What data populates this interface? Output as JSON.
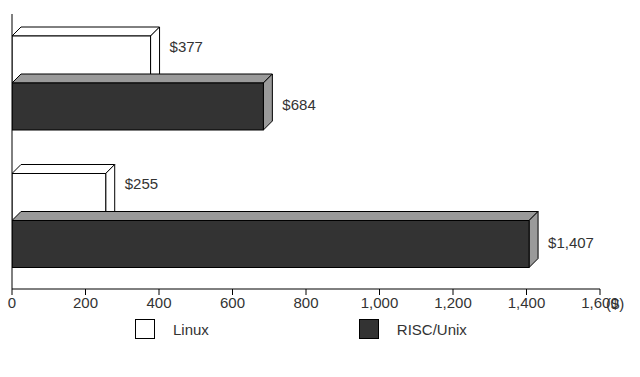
{
  "chart_data": {
    "type": "bar",
    "orientation": "horizontal",
    "categories": [
      null,
      null
    ],
    "x_label": "($)",
    "series": [
      {
        "name": "Linux",
        "color": "#ffffff",
        "values": [
          377,
          255
        ],
        "value_labels": [
          "$377",
          "$255"
        ]
      },
      {
        "name": "RISC/Unix",
        "color": "#333333",
        "values": [
          684,
          1407
        ],
        "value_labels": [
          "$684",
          "$1,407"
        ]
      }
    ],
    "xlim": [
      0,
      1600
    ],
    "xticks": [
      0,
      200,
      400,
      600,
      800,
      {
        "value": 1000,
        "label": "1,000"
      },
      {
        "value": 1200,
        "label": "1,200"
      },
      {
        "value": 1400,
        "label": "1,400"
      },
      {
        "value": 1600,
        "label": "1,600"
      }
    ],
    "data_labels": true,
    "legend": "bottom",
    "grid": false
  }
}
